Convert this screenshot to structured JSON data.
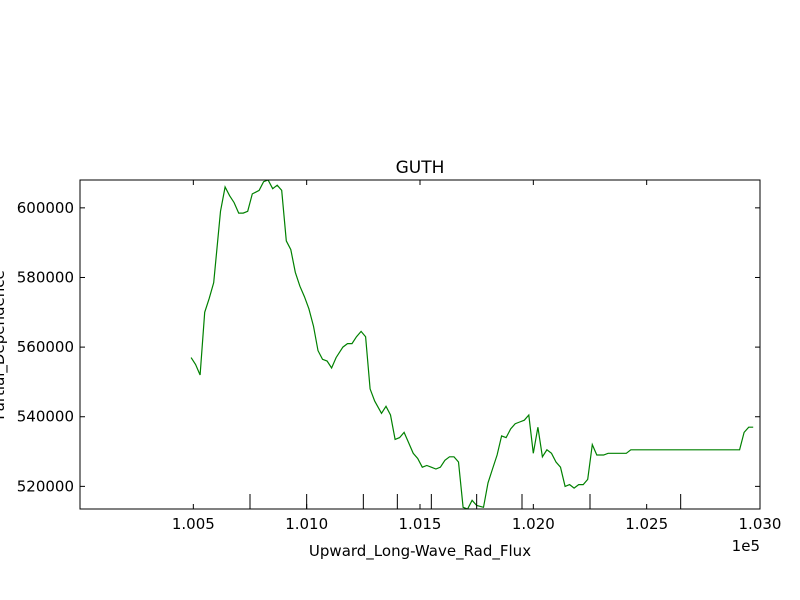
{
  "chart_data": {
    "type": "line",
    "title": "GUTH",
    "xlabel": "Upward_Long-Wave_Rad_Flux",
    "ylabel": "Partial_Dependence",
    "x_offset_label": "1e5",
    "xlim": [
      1.0,
      1.03
    ],
    "ylim": [
      513500,
      608000
    ],
    "x_ticks": [
      1.005,
      1.01,
      1.015,
      1.02,
      1.025,
      1.03
    ],
    "x_tick_labels": [
      "1.005",
      "1.010",
      "1.015",
      "1.020",
      "1.025",
      "1.030"
    ],
    "y_ticks": [
      520000,
      540000,
      560000,
      580000,
      600000
    ],
    "y_tick_labels": [
      "520000",
      "540000",
      "560000",
      "580000",
      "600000"
    ],
    "grid": false,
    "rug": [
      1.0075,
      1.01,
      1.0125,
      1.014,
      1.0155,
      1.0175,
      1.0195,
      1.0225,
      1.0265
    ],
    "series": [
      {
        "color": "#008000",
        "x": [
          1.0049,
          1.0051,
          1.0053,
          1.0055,
          1.0057,
          1.0059,
          1.0062,
          1.0064,
          1.0066,
          1.0068,
          1.007,
          1.0072,
          1.0074,
          1.0076,
          1.0079,
          1.0081,
          1.0083,
          1.0085,
          1.0087,
          1.0089,
          1.0091,
          1.0093,
          1.0095,
          1.0097,
          1.0099,
          1.0101,
          1.0103,
          1.0105,
          1.0107,
          1.0109,
          1.0111,
          1.0113,
          1.0116,
          1.0118,
          1.012,
          1.0122,
          1.0124,
          1.0126,
          1.0128,
          1.013,
          1.0133,
          1.0135,
          1.0137,
          1.0139,
          1.0141,
          1.0143,
          1.0145,
          1.0147,
          1.0149,
          1.0151,
          1.0153,
          1.0155,
          1.0157,
          1.0159,
          1.0161,
          1.0163,
          1.0165,
          1.0167,
          1.0169,
          1.0171,
          1.0173,
          1.0175,
          1.0178,
          1.018,
          1.0182,
          1.0184,
          1.0186,
          1.0188,
          1.019,
          1.0192,
          1.0194,
          1.0196,
          1.0198,
          1.02,
          1.0202,
          1.0204,
          1.0206,
          1.0208,
          1.021,
          1.0212,
          1.0214,
          1.0216,
          1.0218,
          1.022,
          1.0222,
          1.0224,
          1.0226,
          1.0228,
          1.0231,
          1.0233,
          1.0235,
          1.0237,
          1.0239,
          1.0241,
          1.0243,
          1.0245,
          1.0247,
          1.0249,
          1.0251,
          1.0253,
          1.0255,
          1.0257,
          1.0259,
          1.0261,
          1.0263,
          1.0265,
          1.0267,
          1.0269,
          1.0271,
          1.0273,
          1.0275,
          1.0277,
          1.0279,
          1.0281,
          1.0283,
          1.0285,
          1.0287,
          1.0289,
          1.0291,
          1.0293,
          1.0295,
          1.0297
        ],
        "y": [
          557000,
          555000,
          552000,
          570000,
          574000,
          578500,
          599000,
          606000,
          603500,
          601500,
          598500,
          598500,
          599000,
          604000,
          605000,
          607500,
          608000,
          605500,
          606500,
          605000,
          590500,
          588000,
          581500,
          577500,
          574500,
          571000,
          566000,
          559000,
          556500,
          556000,
          554000,
          557000,
          560000,
          561000,
          561000,
          563000,
          564500,
          563000,
          548000,
          544500,
          541000,
          543000,
          540500,
          533500,
          534000,
          535500,
          532500,
          529500,
          528000,
          525500,
          526000,
          525500,
          525000,
          525500,
          527500,
          528500,
          528500,
          527000,
          514000,
          513500,
          516000,
          514500,
          514000,
          521000,
          525000,
          529000,
          534500,
          534000,
          536500,
          538000,
          538500,
          539000,
          540500,
          529500,
          537000,
          528500,
          530500,
          529500,
          527000,
          525500,
          520000,
          520500,
          519500,
          520500,
          520500,
          522000,
          532000,
          529000,
          529000,
          529500,
          529500,
          529500,
          529500,
          529500,
          530500,
          530500,
          530500,
          530500,
          530500,
          530500,
          530500,
          530500,
          530500,
          530500,
          530500,
          530500,
          530500,
          530500,
          530500,
          530500,
          530500,
          530500,
          530500,
          530500,
          530500,
          530500,
          530500,
          530500,
          530500,
          535500,
          537000,
          537000
        ]
      }
    ]
  }
}
